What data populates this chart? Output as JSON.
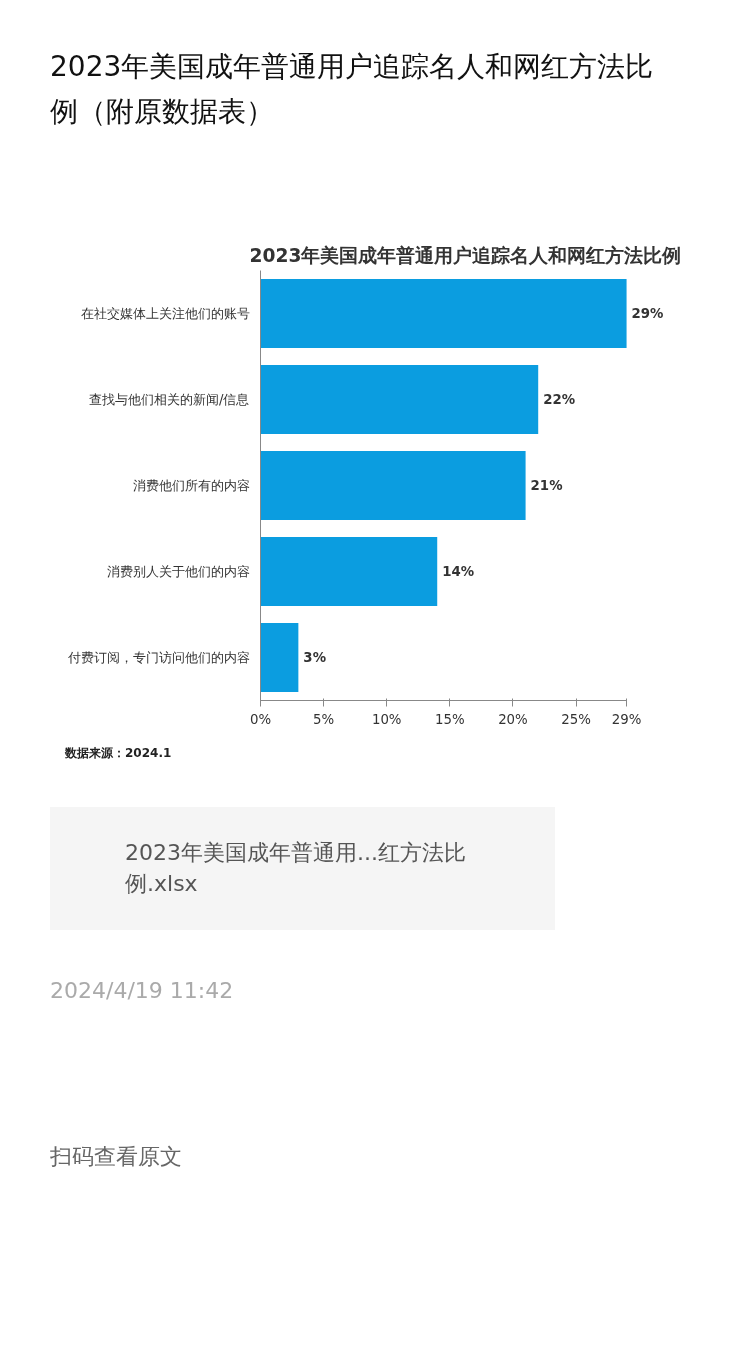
{
  "chart_data": {
    "type": "bar",
    "orientation": "horizontal",
    "title": "2023年美国成年普通用户追踪名人和网红方法比例（附原数据表）",
    "subtitle": "2023年美国成年普通用户追踪名人和网红方法比例",
    "categories": [
      "在社交媒体上关注他们的账号",
      "查找与他们相关的新闻/信息",
      "消费他们所有的内容",
      "消费别人关于他们的内容",
      "付费订阅，专门访问他们的内容"
    ],
    "values": [
      29,
      22,
      21,
      14,
      3
    ],
    "value_labels": [
      "29%",
      "22%",
      "21%",
      "14%",
      "3%"
    ],
    "color": "#0b9de0",
    "xlim": [
      0,
      29
    ],
    "xticks": [
      {
        "value": 0,
        "label": "0%"
      },
      {
        "value": 5,
        "label": "5%"
      },
      {
        "value": 10,
        "label": "10%"
      },
      {
        "value": 15,
        "label": "15%"
      },
      {
        "value": 20,
        "label": "20%"
      },
      {
        "value": 25,
        "label": "25%"
      },
      {
        "value": 29,
        "label": "29%"
      }
    ],
    "grid": false,
    "annotations": [
      "数据来源：2024.1",
      "2023年美国成年普通用...红方法比例.xlsx",
      "2024/4/19 11:42",
      "扫码查看原文"
    ]
  }
}
